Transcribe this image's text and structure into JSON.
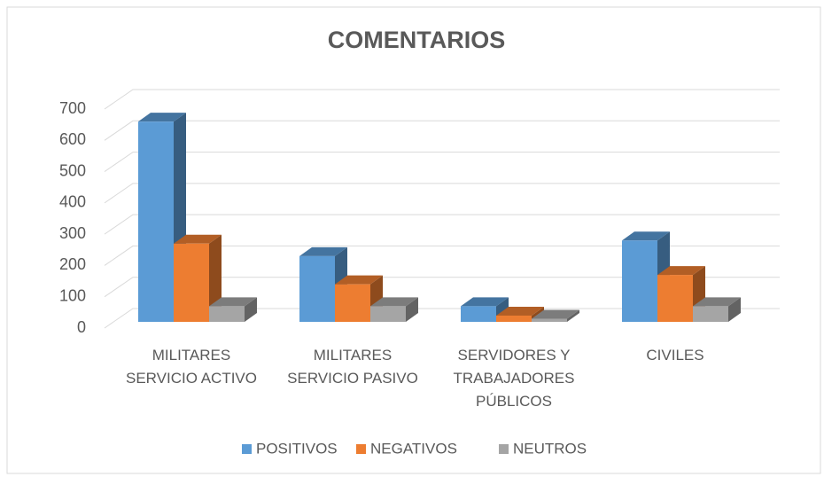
{
  "chart_data": {
    "type": "bar3d",
    "title": "COMENTARIOS",
    "categories": [
      "MILITARES\nSERVICIO ACTIVO",
      "MILITARES\nSERVICIO PASIVO",
      "SERVIDORES Y\nTRABAJADORES\nPÚBLICOS",
      "CIVILES"
    ],
    "series": [
      {
        "name": "POSITIVOS",
        "color": "#5b9bd5",
        "values": [
          640,
          210,
          50,
          260
        ]
      },
      {
        "name": "NEGATIVOS",
        "color": "#ed7d31",
        "values": [
          250,
          120,
          20,
          150
        ]
      },
      {
        "name": "NEUTROS",
        "color": "#a5a5a5",
        "values": [
          50,
          50,
          10,
          50
        ]
      }
    ],
    "ylim": [
      0,
      700
    ],
    "yticks": [
      0,
      100,
      200,
      300,
      400,
      500,
      600,
      700
    ],
    "grid": true,
    "legend": "bottom"
  }
}
